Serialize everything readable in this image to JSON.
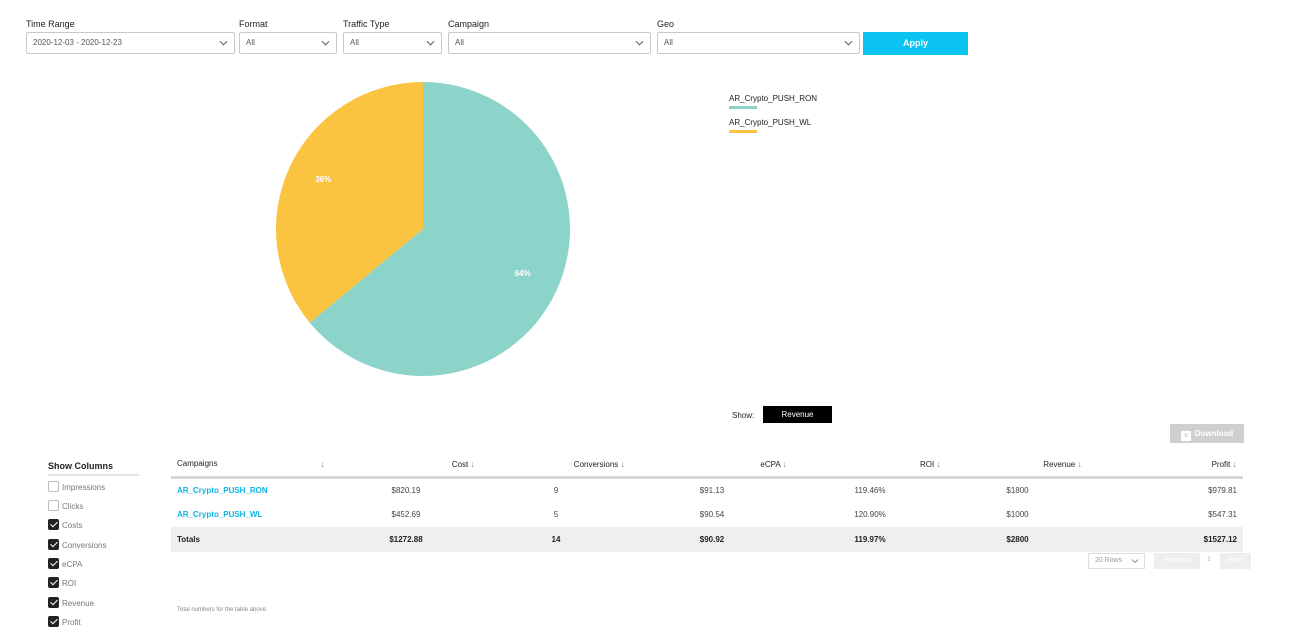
{
  "filters": {
    "time_range": {
      "label": "Time Range",
      "value": "2020-12-03 - 2020-12-23"
    },
    "format": {
      "label": "Format",
      "value": "All"
    },
    "traffic_type": {
      "label": "Traffic Type",
      "value": "All"
    },
    "campaign": {
      "label": "Campaign",
      "value": "All"
    },
    "geo": {
      "label": "Geo",
      "value": "All"
    },
    "apply_label": "Apply"
  },
  "chart_data": {
    "type": "pie",
    "slices": [
      {
        "label": "AR_Crypto_PUSH_RON",
        "value": 64,
        "text": "64%",
        "color": "#8cd3c9"
      },
      {
        "label": "AR_Crypto_PUSH_WL",
        "value": 36,
        "text": "36%",
        "color": "#fbc440"
      }
    ],
    "legend_position": "right"
  },
  "legend": {
    "items": [
      {
        "label": "AR_Crypto_PUSH_RON",
        "color": "#8cd3c9"
      },
      {
        "label": "AR_Crypto_PUSH_WL",
        "color": "#fbc440"
      }
    ]
  },
  "show": {
    "label": "Show:",
    "value": "Revenue"
  },
  "download_label": "Download",
  "columns_panel": {
    "title": "Show Columns",
    "options": [
      {
        "label": "Impressions",
        "checked": false
      },
      {
        "label": "Clicks",
        "checked": false
      },
      {
        "label": "Costs",
        "checked": true
      },
      {
        "label": "Conversions",
        "checked": true
      },
      {
        "label": "eCPA",
        "checked": true
      },
      {
        "label": "ROI",
        "checked": true
      },
      {
        "label": "Revenue",
        "checked": true
      },
      {
        "label": "Profit",
        "checked": true
      }
    ]
  },
  "table": {
    "headers": [
      "Campaigns",
      "Cost",
      "Conversions",
      "eCPA",
      "ROI",
      "Revenue",
      "Profit"
    ],
    "sort_arrow": "↓",
    "rows": [
      {
        "campaign": "AR_Crypto_PUSH_RON",
        "cost": "$820.19",
        "conversions": "9",
        "ecpa": "$91.13",
        "roi": "119.46%",
        "revenue": "$1800",
        "profit": "$979.81"
      },
      {
        "campaign": "AR_Crypto_PUSH_WL",
        "cost": "$452.69",
        "conversions": "5",
        "ecpa": "$90.54",
        "roi": "120.90%",
        "revenue": "$1000",
        "profit": "$547.31"
      }
    ],
    "totals": {
      "label": "Totals",
      "cost": "$1272.88",
      "conversions": "14",
      "ecpa": "$90.92",
      "roi": "119.97%",
      "revenue": "$2800",
      "profit": "$1527.12"
    }
  },
  "pagination": {
    "rows_label": "20 Rows",
    "prev_label": "Previous",
    "page": "1",
    "next_label": "Next"
  },
  "footnote": "Total numbers for the table above"
}
